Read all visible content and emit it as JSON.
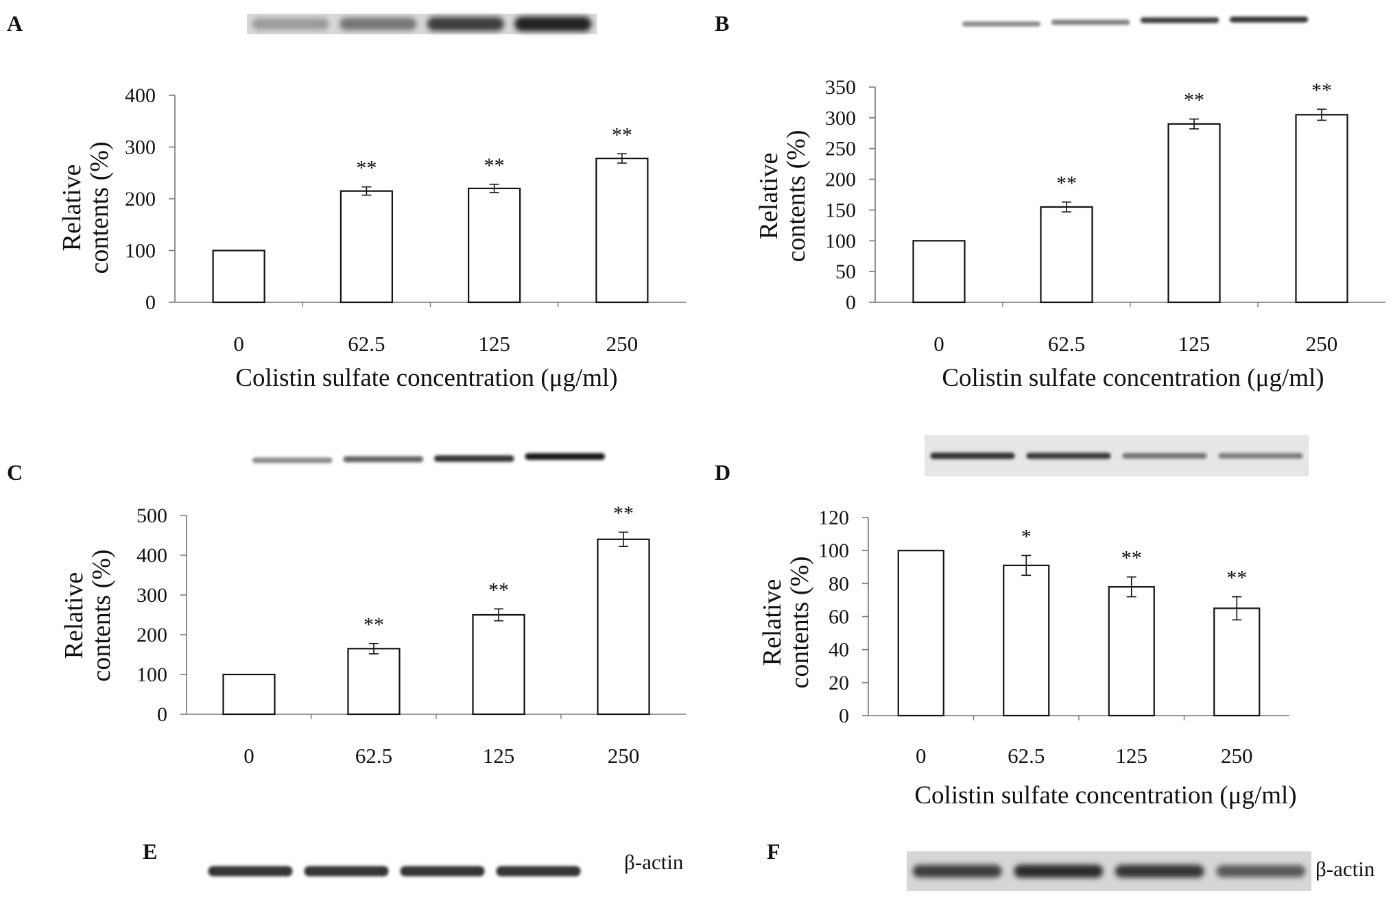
{
  "chart_data": [
    {
      "panel": "A",
      "type": "bar",
      "categories": [
        "0",
        "62.5",
        "125",
        "250"
      ],
      "values": [
        100,
        215,
        220,
        278
      ],
      "errors": [
        0,
        8,
        8,
        9
      ],
      "significance": [
        "",
        "**",
        "**",
        "**"
      ],
      "ylim": [
        0,
        400
      ],
      "yticks": [
        0,
        100,
        200,
        300,
        400
      ],
      "ylabel_line1": "Relative",
      "ylabel_line2": "contents (%)",
      "xlabel": "Colistin sulfate concentration (μg/ml)",
      "grid": false,
      "blot": {
        "intensities": [
          0.25,
          0.45,
          0.75,
          0.9
        ]
      }
    },
    {
      "panel": "B",
      "type": "bar",
      "categories": [
        "0",
        "62.5",
        "125",
        "250"
      ],
      "values": [
        100,
        155,
        290,
        305
      ],
      "errors": [
        0,
        8,
        8,
        9
      ],
      "significance": [
        "",
        "**",
        "**",
        "**"
      ],
      "ylim": [
        0,
        350
      ],
      "yticks": [
        0,
        50,
        100,
        150,
        200,
        250,
        300,
        350
      ],
      "ylabel_line1": "Relative",
      "ylabel_line2": "contents (%)",
      "xlabel": "Colistin sulfate concentration (μg/ml)",
      "grid": false,
      "blot": {
        "intensities": [
          0.35,
          0.4,
          0.75,
          0.8
        ]
      }
    },
    {
      "panel": "C",
      "type": "bar",
      "categories": [
        "0",
        "62.5",
        "125",
        "250"
      ],
      "values": [
        100,
        165,
        250,
        440
      ],
      "errors": [
        0,
        13,
        15,
        18
      ],
      "significance": [
        "",
        "**",
        "**",
        "**"
      ],
      "ylim": [
        0,
        500
      ],
      "yticks": [
        0,
        100,
        200,
        300,
        400,
        500
      ],
      "ylabel_line1": "Relative",
      "ylabel_line2": "contents (%)",
      "xlabel": "",
      "grid": false,
      "blot": {
        "intensities": [
          0.35,
          0.55,
          0.8,
          0.95
        ]
      }
    },
    {
      "panel": "D",
      "type": "bar",
      "categories": [
        "0",
        "62.5",
        "125",
        "250"
      ],
      "values": [
        100,
        91,
        78,
        65
      ],
      "errors": [
        0,
        6,
        6,
        7
      ],
      "significance": [
        "",
        "*",
        "**",
        "**"
      ],
      "ylim": [
        0,
        120
      ],
      "yticks": [
        0,
        20,
        40,
        60,
        80,
        100,
        120
      ],
      "ylabel_line1": "Relative",
      "ylabel_line2": "contents (%)",
      "xlabel": "Colistin sulfate concentration (μg/ml)",
      "grid": false,
      "blot": {
        "intensities": [
          0.8,
          0.75,
          0.45,
          0.4
        ]
      }
    }
  ],
  "loading_controls": [
    {
      "panel": "E",
      "label": "β-actin",
      "intensities": [
        0.8,
        0.8,
        0.8,
        0.8
      ]
    },
    {
      "panel": "F",
      "label": "β-actin",
      "intensities": [
        0.75,
        0.85,
        0.8,
        0.6
      ]
    }
  ]
}
